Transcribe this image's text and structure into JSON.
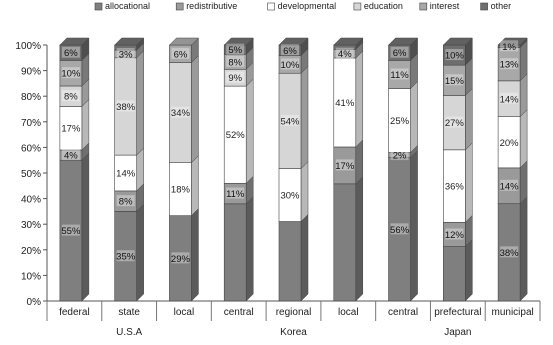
{
  "chart_data": {
    "type": "bar",
    "stacked": true,
    "stacking": "percent",
    "categories": [
      "federal",
      "state",
      "local",
      "central",
      "regional",
      "local",
      "central",
      "prefectural",
      "municipal"
    ],
    "groups": [
      {
        "label": "U.S.A",
        "from": 0,
        "to": 2
      },
      {
        "label": "Korea",
        "from": 3,
        "to": 5
      },
      {
        "label": "Japan",
        "from": 6,
        "to": 8
      }
    ],
    "series": [
      {
        "name": "allocational",
        "color": "#7f7f7f",
        "values": [
          55,
          35,
          29,
          52,
          45,
          54,
          56,
          27,
          38
        ],
        "labels": [
          "55%",
          "35%",
          "29%",
          "",
          "",
          "",
          "56%",
          "",
          "38%"
        ]
      },
      {
        "name": "redistributive",
        "color": "#9a9a9a",
        "values": [
          4,
          8,
          0,
          11,
          0,
          17,
          2,
          12,
          14
        ],
        "labels": [
          "4%",
          "8%",
          "",
          "11%",
          "",
          "17%",
          "2%",
          "12%",
          "14%"
        ]
      },
      {
        "name": "developmental",
        "color": "#ffffff",
        "values": [
          17,
          14,
          18,
          52,
          30,
          41,
          25,
          36,
          20
        ],
        "labels": [
          "17%",
          "14%",
          "18%",
          "52%",
          "30%",
          "41%",
          "25%",
          "36%",
          "20%"
        ]
      },
      {
        "name": "education",
        "color": "#d6d6d6",
        "values": [
          8,
          38,
          34,
          9,
          54,
          0,
          0,
          27,
          14
        ],
        "labels": [
          "8%",
          "38%",
          "34%",
          "9%",
          "54%",
          "",
          "",
          "27%",
          "14%"
        ]
      },
      {
        "name": "interest",
        "color": "#a8a8a8",
        "values": [
          10,
          3,
          6,
          8,
          10,
          4,
          11,
          15,
          13
        ],
        "labels": [
          "10%",
          "3%",
          "6%",
          "8%",
          "10%",
          "4%",
          "11%",
          "15%",
          "13%"
        ]
      },
      {
        "name": "other",
        "color": "#6e6e6e",
        "values": [
          6,
          2,
          0,
          5,
          6,
          2,
          6,
          10,
          1
        ],
        "labels": [
          "6%",
          "",
          "",
          "5%",
          "6%",
          "",
          "6%",
          "10%",
          "1%"
        ]
      }
    ],
    "ylim": [
      0,
      100
    ],
    "yticks": [
      "0%",
      "10%",
      "20%",
      "30%",
      "40%",
      "50%",
      "60%",
      "70%",
      "80%",
      "90%",
      "100%"
    ],
    "legend_position": "top",
    "grid": false
  }
}
